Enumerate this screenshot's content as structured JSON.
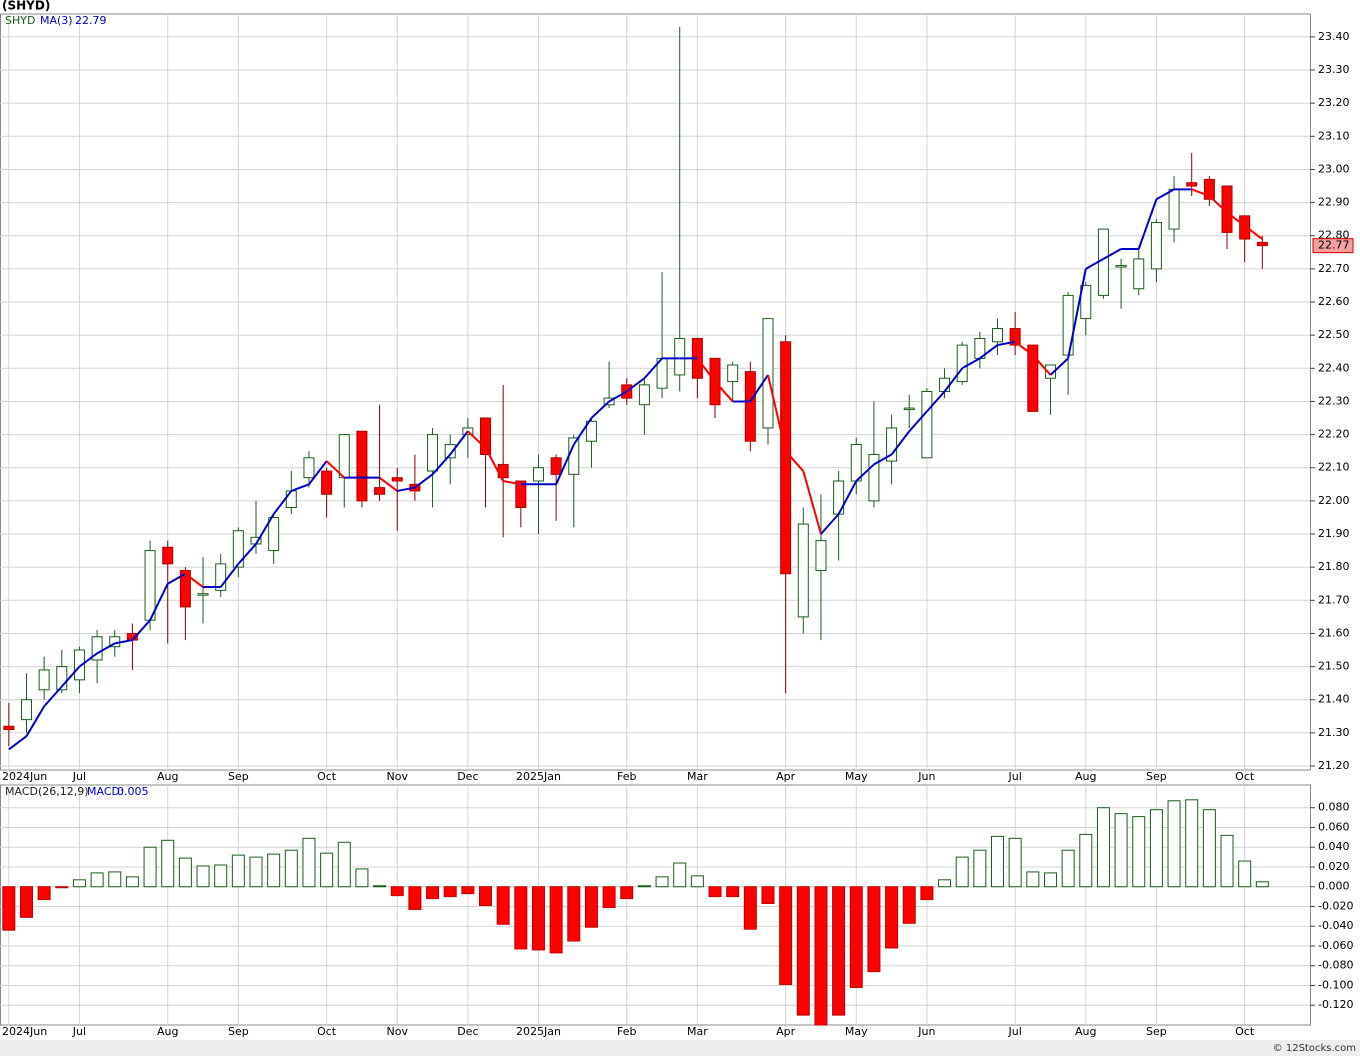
{
  "header": {
    "symbol": "(SHYD)",
    "footer": "© 12Stocks.com"
  },
  "chart_data": [
    {
      "type": "candlestick",
      "name": "SHYD",
      "up_color": "#1a5e1a",
      "down_color": "#ff0000",
      "xlim": [
        -0.5,
        73.7
      ],
      "ylim": [
        21.188,
        23.469
      ],
      "grid": true,
      "xticks": [
        {
          "value": 0,
          "label": "2024Jun"
        },
        {
          "value": 4,
          "label": "Jul"
        },
        {
          "value": 9,
          "label": "Aug"
        },
        {
          "value": 13,
          "label": "Sep"
        },
        {
          "value": 18,
          "label": "Oct"
        },
        {
          "value": 22,
          "label": "Nov"
        },
        {
          "value": 26,
          "label": "Dec"
        },
        {
          "value": 30,
          "label": "2025Jan"
        },
        {
          "value": 35,
          "label": "Feb"
        },
        {
          "value": 39,
          "label": "Mar"
        },
        {
          "value": 44,
          "label": "Apr"
        },
        {
          "value": 48,
          "label": "May"
        },
        {
          "value": 52,
          "label": "Jun"
        },
        {
          "value": 57,
          "label": "Jul"
        },
        {
          "value": 61,
          "label": "Aug"
        },
        {
          "value": 65,
          "label": "Sep"
        },
        {
          "value": 70,
          "label": "Oct"
        }
      ],
      "yticks": [
        {
          "value": 21.2,
          "label": "21.20"
        },
        {
          "value": 21.3,
          "label": "21.30"
        },
        {
          "value": 21.4,
          "label": "21.40"
        },
        {
          "value": 21.5,
          "label": "21.50"
        },
        {
          "value": 21.6,
          "label": "21.60"
        },
        {
          "value": 21.7,
          "label": "21.70"
        },
        {
          "value": 21.8,
          "label": "21.80"
        },
        {
          "value": 21.9,
          "label": "21.90"
        },
        {
          "value": 22.0,
          "label": "22.00"
        },
        {
          "value": 22.1,
          "label": "22.10"
        },
        {
          "value": 22.2,
          "label": "22.20"
        },
        {
          "value": 22.3,
          "label": "22.30"
        },
        {
          "value": 22.4,
          "label": "22.40"
        },
        {
          "value": 22.5,
          "label": "22.50"
        },
        {
          "value": 22.6,
          "label": "22.60"
        },
        {
          "value": 22.7,
          "label": "22.70"
        },
        {
          "value": 22.8,
          "label": "22.80"
        },
        {
          "value": 22.9,
          "label": "22.90"
        },
        {
          "value": 23.0,
          "label": "23.00"
        },
        {
          "value": 23.1,
          "label": "23.10"
        },
        {
          "value": 23.2,
          "label": "23.20"
        },
        {
          "value": 23.3,
          "label": "23.30"
        },
        {
          "value": 23.4,
          "label": "23.40"
        }
      ],
      "open": [
        21.32,
        21.34,
        21.43,
        21.43,
        21.46,
        21.52,
        21.56,
        21.6,
        21.64,
        21.86,
        21.79,
        21.72,
        21.73,
        21.8,
        21.87,
        21.85,
        21.98,
        22.07,
        22.09,
        22.07,
        22.21,
        22.04,
        22.07,
        22.05,
        22.09,
        22.13,
        22.2,
        22.25,
        22.11,
        22.06,
        22.06,
        22.13,
        22.08,
        22.18,
        22.29,
        22.35,
        22.29,
        22.34,
        22.38,
        22.49,
        22.43,
        22.36,
        22.39,
        22.22,
        22.48,
        21.65,
        21.79,
        21.96,
        22.06,
        22.0,
        22.12,
        22.28,
        22.13,
        22.33,
        22.36,
        22.43,
        22.48,
        22.52,
        22.47,
        22.37,
        22.44,
        22.55,
        22.62,
        22.71,
        22.64,
        22.7,
        22.82,
        22.96,
        22.97,
        22.95,
        22.86,
        22.78
      ],
      "high": [
        21.39,
        21.48,
        21.53,
        21.55,
        21.56,
        21.61,
        21.61,
        21.63,
        21.88,
        21.88,
        21.8,
        21.83,
        21.84,
        21.92,
        22.0,
        21.96,
        22.09,
        22.15,
        22.1,
        22.2,
        22.21,
        22.29,
        22.1,
        22.14,
        22.22,
        22.2,
        22.25,
        22.25,
        22.35,
        22.06,
        22.14,
        22.14,
        22.2,
        22.25,
        22.42,
        22.37,
        22.37,
        22.69,
        23.43,
        22.49,
        22.43,
        22.42,
        22.42,
        22.55,
        22.5,
        21.98,
        22.02,
        22.09,
        22.19,
        22.3,
        22.26,
        22.32,
        22.34,
        22.4,
        22.48,
        22.51,
        22.55,
        22.57,
        22.47,
        22.41,
        22.63,
        22.66,
        22.82,
        22.73,
        22.77,
        22.85,
        22.98,
        23.05,
        22.98,
        22.95,
        22.86,
        22.8
      ],
      "low": [
        21.26,
        21.3,
        21.4,
        21.42,
        21.42,
        21.45,
        21.53,
        21.49,
        21.61,
        21.57,
        21.58,
        21.63,
        21.71,
        21.77,
        21.84,
        21.81,
        21.96,
        22.04,
        21.95,
        21.98,
        21.98,
        22.0,
        21.91,
        22.0,
        21.98,
        22.05,
        22.13,
        21.98,
        21.89,
        21.92,
        21.9,
        21.94,
        21.92,
        22.1,
        22.28,
        22.29,
        22.2,
        22.31,
        22.33,
        22.31,
        22.25,
        22.3,
        22.15,
        22.17,
        21.42,
        21.6,
        21.58,
        21.82,
        22.02,
        21.98,
        22.05,
        22.22,
        22.13,
        22.31,
        22.35,
        22.4,
        22.44,
        22.44,
        22.27,
        22.26,
        22.32,
        22.5,
        22.61,
        22.58,
        22.62,
        22.66,
        22.78,
        22.92,
        22.89,
        22.76,
        22.72,
        22.7
      ],
      "close": [
        21.31,
        21.4,
        21.49,
        21.5,
        21.55,
        21.59,
        21.59,
        21.58,
        21.85,
        21.81,
        21.68,
        21.72,
        21.81,
        21.91,
        21.89,
        21.95,
        22.03,
        22.13,
        22.02,
        22.2,
        22.0,
        22.02,
        22.06,
        22.03,
        22.2,
        22.17,
        22.22,
        22.14,
        22.07,
        21.98,
        22.1,
        22.08,
        22.19,
        22.24,
        22.31,
        22.31,
        22.35,
        22.43,
        22.49,
        22.37,
        22.29,
        22.41,
        22.18,
        22.55,
        21.78,
        21.93,
        21.88,
        22.06,
        22.17,
        22.14,
        22.22,
        22.28,
        22.33,
        22.37,
        22.47,
        22.49,
        22.52,
        22.47,
        22.27,
        22.41,
        22.62,
        22.65,
        22.82,
        22.71,
        22.73,
        22.84,
        22.94,
        22.95,
        22.91,
        22.81,
        22.79,
        22.77
      ],
      "ma": {
        "name": "MA(3)",
        "up_color": "#0000cc",
        "down_color": "#ff0000",
        "values": [
          21.25,
          21.29,
          21.38,
          21.44,
          21.5,
          21.54,
          21.57,
          21.58,
          21.64,
          21.75,
          21.78,
          21.74,
          21.74,
          21.81,
          21.87,
          21.96,
          22.03,
          22.05,
          22.12,
          22.07,
          22.07,
          22.07,
          22.03,
          22.04,
          22.08,
          22.14,
          22.21,
          22.16,
          22.06,
          22.05,
          22.05,
          22.05,
          22.17,
          22.25,
          22.3,
          22.33,
          22.37,
          22.43,
          22.43,
          22.43,
          22.36,
          22.3,
          22.3,
          22.38,
          22.15,
          22.09,
          21.9,
          21.96,
          22.06,
          22.11,
          22.14,
          22.21,
          22.27,
          22.33,
          22.4,
          22.43,
          22.47,
          22.48,
          22.44,
          22.38,
          22.43,
          22.7,
          22.73,
          22.76,
          22.76,
          22.91,
          22.94,
          22.94,
          22.92,
          22.87,
          22.83,
          22.79
        ]
      }
    },
    {
      "type": "histogram_macd",
      "name": "MACD(26,12,9)",
      "value_name": "MACD:",
      "up_color": "#1a5e1a",
      "down_color": "#ff0000",
      "ylim": [
        -0.14,
        0.103
      ],
      "yticks": [
        {
          "value": -0.12,
          "label": "-0.120"
        },
        {
          "value": -0.1,
          "label": "-0.100"
        },
        {
          "value": -0.08,
          "label": "-0.080"
        },
        {
          "value": -0.06,
          "label": "-0.060"
        },
        {
          "value": -0.04,
          "label": "-0.040"
        },
        {
          "value": -0.02,
          "label": "-0.020"
        },
        {
          "value": 0,
          "label": "0.000"
        },
        {
          "value": 0.02,
          "label": "0.020"
        },
        {
          "value": 0.04,
          "label": "0.040"
        },
        {
          "value": 0.06,
          "label": "0.060"
        },
        {
          "value": 0.08,
          "label": "0.080"
        }
      ],
      "values": [
        -0.044,
        -0.031,
        -0.013,
        -0.001,
        0.007,
        0.014,
        0.015,
        0.01,
        0.04,
        0.047,
        0.029,
        0.021,
        0.022,
        0.032,
        0.03,
        0.033,
        0.037,
        0.049,
        0.034,
        0.045,
        0.018,
        0.001,
        -0.009,
        -0.023,
        -0.012,
        -0.01,
        -0.007,
        -0.019,
        -0.038,
        -0.063,
        -0.064,
        -0.067,
        -0.055,
        -0.041,
        -0.021,
        -0.012,
        0.001,
        0.01,
        0.024,
        0.011,
        -0.01,
        -0.01,
        -0.043,
        -0.017,
        -0.099,
        -0.13,
        -0.14,
        -0.13,
        -0.102,
        -0.086,
        -0.062,
        -0.037,
        -0.013,
        0.007,
        0.03,
        0.037,
        0.051,
        0.049,
        0.015,
        0.014,
        0.037,
        0.053,
        0.08,
        0.074,
        0.071,
        0.078,
        0.087,
        0.088,
        0.078,
        0.052,
        0.026,
        0.005
      ]
    }
  ]
}
